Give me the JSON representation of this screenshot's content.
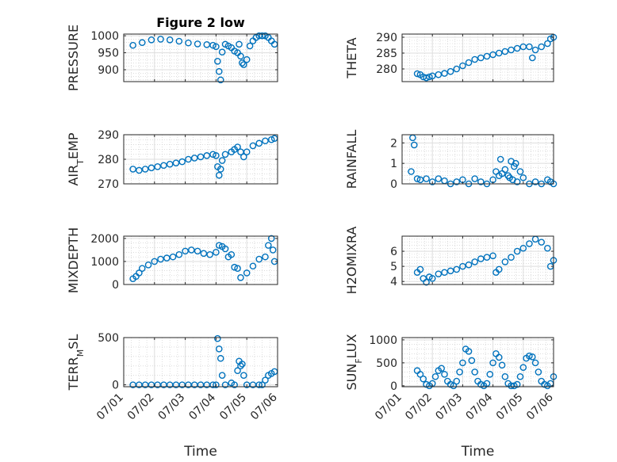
{
  "figure": {
    "title": "Figure 2 low",
    "xlabel": "Time",
    "marker_color": "#0072BD",
    "x_ticks": [
      "07/01",
      "07/02",
      "07/03",
      "07/04",
      "07/05",
      "07/06"
    ]
  },
  "chart_data": [
    {
      "type": "scatter",
      "name": "pressure",
      "title": "Figure 2 low",
      "ylabel": "PRESSURE",
      "xlim": [
        0,
        5
      ],
      "ylim": [
        865,
        1005
      ],
      "yticks": [
        900,
        950,
        1000
      ],
      "grid": true,
      "x_tick_labels_shown": false,
      "series": [
        {
          "x": [
            0.3,
            0.6,
            0.9,
            1.2,
            1.5,
            1.8,
            2.1,
            2.4,
            2.7,
            2.9,
            3.0,
            3.05,
            3.1,
            3.15,
            3.2,
            3.3,
            3.4,
            3.5,
            3.6,
            3.7,
            3.75,
            3.8,
            3.85,
            3.9,
            4.0,
            4.1,
            4.2,
            4.3,
            4.4,
            4.5,
            4.6,
            4.7,
            4.8,
            4.9
          ],
          "y": [
            972,
            980,
            988,
            990,
            988,
            984,
            979,
            976,
            974,
            972,
            968,
            925,
            895,
            870,
            952,
            975,
            970,
            965,
            955,
            950,
            975,
            940,
            920,
            915,
            930,
            970,
            985,
            995,
            1000,
            1000,
            1000,
            995,
            985,
            975
          ]
        }
      ]
    },
    {
      "type": "scatter",
      "name": "theta",
      "ylabel": "THETA",
      "xlim": [
        0,
        5
      ],
      "ylim": [
        276,
        291
      ],
      "yticks": [
        280,
        285,
        290
      ],
      "grid": true,
      "x_tick_labels_shown": false,
      "series": [
        {
          "x": [
            0.5,
            0.6,
            0.7,
            0.8,
            0.9,
            1.0,
            1.2,
            1.4,
            1.6,
            1.8,
            2.0,
            2.2,
            2.4,
            2.6,
            2.8,
            3.0,
            3.2,
            3.4,
            3.6,
            3.8,
            4.0,
            4.2,
            4.3,
            4.4,
            4.6,
            4.8,
            4.9,
            5.0
          ],
          "y": [
            278.5,
            278.2,
            277.5,
            277.2,
            277.5,
            277.8,
            278.2,
            278.6,
            279.2,
            280.0,
            281.0,
            282.0,
            283.0,
            283.5,
            284.0,
            284.5,
            285.0,
            285.5,
            286.0,
            286.5,
            287.0,
            287.0,
            283.5,
            286.0,
            287.0,
            288.0,
            289.5,
            290.0
          ]
        }
      ]
    },
    {
      "type": "scatter",
      "name": "air-temp",
      "ylabel": "AIR_TEMP",
      "xlim": [
        0,
        5
      ],
      "ylim": [
        270,
        290
      ],
      "yticks": [
        270,
        280,
        290
      ],
      "grid": true,
      "x_tick_labels_shown": false,
      "series": [
        {
          "x": [
            0.3,
            0.5,
            0.7,
            0.9,
            1.1,
            1.3,
            1.5,
            1.7,
            1.9,
            2.1,
            2.3,
            2.5,
            2.7,
            2.9,
            3.0,
            3.05,
            3.1,
            3.15,
            3.2,
            3.3,
            3.5,
            3.6,
            3.7,
            3.8,
            3.9,
            4.0,
            4.2,
            4.4,
            4.6,
            4.8,
            4.9
          ],
          "y": [
            276,
            275.5,
            276,
            276.5,
            277,
            277.5,
            278,
            278.5,
            279,
            280,
            280.5,
            281,
            281.5,
            282,
            281.5,
            277,
            273.5,
            276,
            279.5,
            282,
            283,
            284,
            285,
            283,
            281,
            283,
            285.5,
            286.5,
            287.5,
            288,
            288.5
          ]
        }
      ]
    },
    {
      "type": "scatter",
      "name": "rainfall",
      "ylabel": "RAINFALL",
      "xlim": [
        0,
        5
      ],
      "ylim": [
        0,
        2.4
      ],
      "yticks": [
        0,
        1,
        2
      ],
      "grid": true,
      "x_tick_labels_shown": false,
      "series": [
        {
          "x": [
            0.3,
            0.35,
            0.4,
            0.5,
            0.6,
            0.8,
            1.0,
            1.2,
            1.4,
            1.6,
            1.8,
            2.0,
            2.2,
            2.4,
            2.6,
            2.8,
            3.0,
            3.1,
            3.2,
            3.25,
            3.3,
            3.4,
            3.5,
            3.55,
            3.6,
            3.65,
            3.7,
            3.75,
            3.8,
            3.9,
            4.0,
            4.2,
            4.4,
            4.6,
            4.8,
            4.9,
            5.0
          ],
          "y": [
            0.6,
            2.25,
            1.9,
            0.25,
            0.2,
            0.25,
            0.1,
            0.25,
            0.15,
            0.0,
            0.1,
            0.2,
            0.0,
            0.25,
            0.1,
            0.0,
            0.2,
            0.6,
            0.4,
            1.2,
            0.5,
            0.7,
            0.4,
            0.3,
            1.1,
            0.2,
            0.85,
            1.0,
            0.1,
            0.6,
            0.3,
            0.0,
            0.1,
            0.0,
            0.2,
            0.1,
            0.0
          ]
        }
      ]
    },
    {
      "type": "scatter",
      "name": "mixdepth",
      "ylabel": "MIXDEPTH",
      "xlim": [
        0,
        5
      ],
      "ylim": [
        0,
        2100
      ],
      "yticks": [
        0,
        1000,
        2000
      ],
      "grid": true,
      "x_tick_labels_shown": false,
      "series": [
        {
          "x": [
            0.3,
            0.4,
            0.5,
            0.6,
            0.8,
            1.0,
            1.2,
            1.4,
            1.6,
            1.8,
            2.0,
            2.2,
            2.4,
            2.6,
            2.8,
            3.0,
            3.1,
            3.2,
            3.3,
            3.4,
            3.5,
            3.6,
            3.7,
            3.8,
            4.0,
            4.2,
            4.4,
            4.6,
            4.7,
            4.8,
            4.85,
            4.9
          ],
          "y": [
            250,
            350,
            500,
            700,
            850,
            1000,
            1100,
            1150,
            1200,
            1300,
            1450,
            1500,
            1450,
            1350,
            1300,
            1400,
            1700,
            1650,
            1550,
            1200,
            1300,
            750,
            700,
            300,
            500,
            800,
            1100,
            1200,
            1700,
            2000,
            1500,
            1000
          ]
        }
      ]
    },
    {
      "type": "scatter",
      "name": "h2omixra",
      "ylabel": "H2OMIXRA",
      "xlim": [
        0,
        5
      ],
      "ylim": [
        3.8,
        7
      ],
      "yticks": [
        4,
        5,
        6
      ],
      "grid": true,
      "x_tick_labels_shown": false,
      "series": [
        {
          "x": [
            0.5,
            0.6,
            0.7,
            0.8,
            0.9,
            1.0,
            1.2,
            1.4,
            1.6,
            1.8,
            2.0,
            2.2,
            2.4,
            2.6,
            2.8,
            3.0,
            3.1,
            3.2,
            3.4,
            3.6,
            3.8,
            4.0,
            4.2,
            4.4,
            4.6,
            4.8,
            4.9,
            5.0
          ],
          "y": [
            4.6,
            4.8,
            4.2,
            3.95,
            4.3,
            4.2,
            4.5,
            4.6,
            4.7,
            4.8,
            5.0,
            5.1,
            5.3,
            5.5,
            5.6,
            5.7,
            4.6,
            4.8,
            5.3,
            5.6,
            6.0,
            6.2,
            6.5,
            6.8,
            6.6,
            6.2,
            5.0,
            5.4
          ]
        }
      ]
    },
    {
      "type": "scatter",
      "name": "terr-msl",
      "ylabel": "TERR_MSL",
      "xlim": [
        0,
        5
      ],
      "ylim": [
        -20,
        500
      ],
      "yticks": [
        0,
        500
      ],
      "grid": true,
      "x_tick_labels_shown": true,
      "series": [
        {
          "x": [
            0.3,
            0.5,
            0.7,
            0.9,
            1.1,
            1.3,
            1.5,
            1.7,
            1.9,
            2.1,
            2.3,
            2.5,
            2.7,
            2.9,
            3.0,
            3.05,
            3.1,
            3.15,
            3.2,
            3.3,
            3.5,
            3.6,
            3.7,
            3.75,
            3.8,
            3.85,
            3.9,
            4.0,
            4.2,
            4.4,
            4.5,
            4.6,
            4.7,
            4.8,
            4.9
          ],
          "y": [
            0,
            0,
            0,
            0,
            0,
            0,
            0,
            0,
            0,
            0,
            0,
            0,
            0,
            0,
            0,
            490,
            380,
            280,
            100,
            0,
            20,
            0,
            150,
            250,
            200,
            220,
            100,
            0,
            0,
            0,
            0,
            50,
            100,
            120,
            140
          ]
        }
      ]
    },
    {
      "type": "scatter",
      "name": "sun-flux",
      "ylabel": "SUN_FLUX",
      "xlim": [
        0,
        5
      ],
      "ylim": [
        -20,
        1050
      ],
      "yticks": [
        0,
        500,
        1000
      ],
      "grid": true,
      "x_tick_labels_shown": true,
      "series": [
        {
          "x": [
            0.5,
            0.6,
            0.7,
            0.8,
            0.9,
            1.0,
            1.1,
            1.2,
            1.3,
            1.4,
            1.5,
            1.6,
            1.7,
            1.8,
            1.9,
            2.0,
            2.1,
            2.2,
            2.3,
            2.4,
            2.5,
            2.6,
            2.7,
            2.8,
            2.9,
            3.0,
            3.1,
            3.2,
            3.3,
            3.4,
            3.5,
            3.6,
            3.7,
            3.8,
            3.9,
            4.0,
            4.1,
            4.2,
            4.3,
            4.4,
            4.5,
            4.6,
            4.7,
            4.8,
            4.9,
            5.0
          ],
          "y": [
            330,
            250,
            150,
            30,
            0,
            50,
            200,
            330,
            380,
            250,
            100,
            30,
            0,
            100,
            300,
            500,
            800,
            750,
            550,
            300,
            100,
            30,
            0,
            50,
            250,
            500,
            700,
            620,
            450,
            200,
            50,
            0,
            0,
            30,
            200,
            400,
            600,
            650,
            630,
            500,
            300,
            100,
            30,
            0,
            50,
            200
          ]
        }
      ]
    }
  ]
}
